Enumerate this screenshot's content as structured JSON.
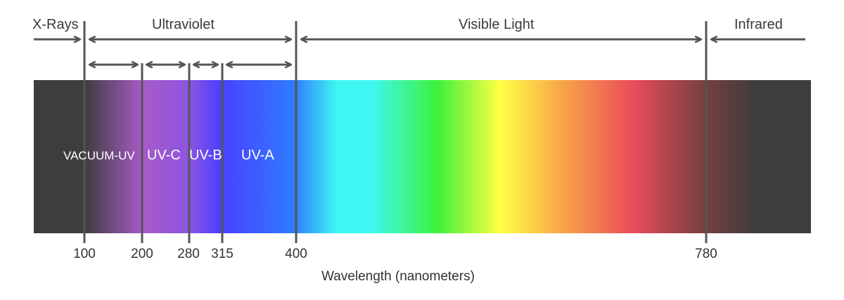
{
  "regions": {
    "xrays": "X-Rays",
    "ultraviolet": "Ultraviolet",
    "visible": "Visible Light",
    "infrared": "Infrared"
  },
  "bands": {
    "vacuum_uv": "VACUUM-UV",
    "uv_c": "UV-C",
    "uv_b": "UV-B",
    "uv_a": "UV-A"
  },
  "ticks": [
    "100",
    "200",
    "280",
    "315",
    "400",
    "780"
  ],
  "axis_label": "Wavelength (nanometers)",
  "colors": {
    "dark": "#3d3d3d",
    "line": "#555555",
    "uv_c": "#a65bc7",
    "uv_b": "#8d55e0",
    "uv_a": "#4a40ff",
    "blue": "#2f7bff",
    "cyan": "#3ff7f2",
    "green": "#3ef23a",
    "yellow": "#ffff44",
    "orange": "#f8a447",
    "red": "#eb4d5a",
    "brown": "#7a3f3f"
  }
}
